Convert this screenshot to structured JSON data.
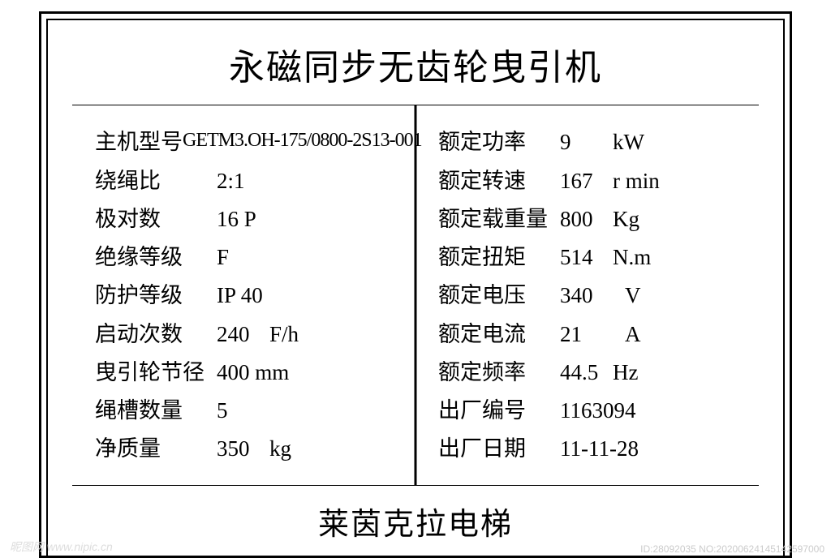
{
  "title": "永磁同步无齿轮曳引机",
  "footer": "莱茵克拉电梯",
  "left": [
    {
      "label": "主机型号",
      "value": "GETM3.OH-175/0800-2S13-001",
      "tight": true
    },
    {
      "label": "绕绳比",
      "value": "2:1"
    },
    {
      "label": "极对数",
      "value": "16 P"
    },
    {
      "label": "绝缘等级",
      "value": "F"
    },
    {
      "label": "防护等级",
      "value": "IP 40"
    },
    {
      "label": "启动次数",
      "value": "240",
      "unit": "F/h"
    },
    {
      "label": "曳引轮节径",
      "value": "400 mm"
    },
    {
      "label": "绳槽数量",
      "value": "5"
    },
    {
      "label": "净质量",
      "value": "350",
      "unit": "kg"
    }
  ],
  "right": [
    {
      "label": "额定功率",
      "num": "9",
      "unit": "kW"
    },
    {
      "label": "额定转速",
      "num": "167",
      "unit": "r min"
    },
    {
      "label": "额定载重量",
      "num": "800",
      "unit": "Kg"
    },
    {
      "label": "额定扭矩",
      "num": "514",
      "unit": "N.m"
    },
    {
      "label": "额定电压",
      "num": "340",
      "unit": "V",
      "wide": true
    },
    {
      "label": "额定电流",
      "num": "21",
      "unit": "A",
      "wide": true
    },
    {
      "label": "额定频率",
      "num": "44.5",
      "unit": "Hz"
    },
    {
      "label": "出厂编号",
      "value": "1163094"
    },
    {
      "label": "出厂日期",
      "value": "11-11-28"
    }
  ],
  "watermark_left": "昵图网 www.nipic.cn",
  "watermark_right": "ID:28092035 NO:20200624145142597000"
}
